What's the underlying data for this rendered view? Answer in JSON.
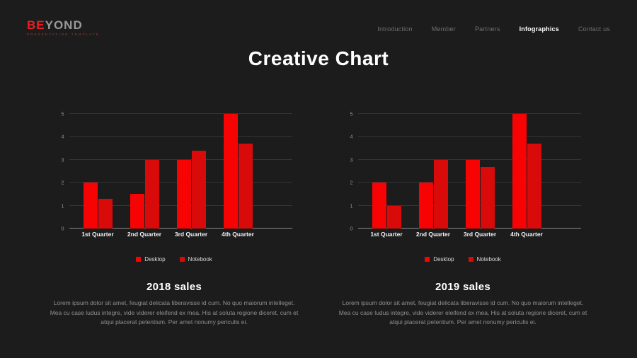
{
  "page": {
    "title": "Creative Chart"
  },
  "brand": {
    "logo_primary": "BE",
    "logo_secondary": "YOND",
    "tagline": "PRESENTATION TEMPLATE"
  },
  "nav": {
    "items": [
      {
        "label": "Introduction",
        "active": false
      },
      {
        "label": "Member",
        "active": false
      },
      {
        "label": "Partners",
        "active": false
      },
      {
        "label": "Infographics",
        "active": true
      },
      {
        "label": "Contact us",
        "active": false
      }
    ]
  },
  "colors": {
    "background": "#1c1c1c",
    "accent_red": "#ed1c24",
    "desktop_bar": "#f80304",
    "notebook_bar": "#d80a0a",
    "gridline": "#343434",
    "axis_baseline": "#8a8a8a"
  },
  "chart_data": [
    {
      "type": "bar",
      "title": "2018 sales",
      "categories": [
        "1st Quarter",
        "2nd Quarter",
        "3rd Quarter",
        "4th Quarter"
      ],
      "series": [
        {
          "name": "Desktop",
          "color": "#f80304",
          "values": [
            2.0,
            1.5,
            3.0,
            5.0
          ]
        },
        {
          "name": "Notebook",
          "color": "#d80a0a",
          "values": [
            1.3,
            3.0,
            3.4,
            3.7
          ]
        }
      ],
      "ylim": [
        0,
        5
      ],
      "yticks": [
        0,
        1,
        2,
        3,
        4,
        5
      ],
      "grid": true,
      "legend_position": "bottom"
    },
    {
      "type": "bar",
      "title": "2019 sales",
      "categories": [
        "1st Quarter",
        "2nd Quarter",
        "3rd Quarter",
        "4th Quarter"
      ],
      "series": [
        {
          "name": "Desktop",
          "color": "#f80304",
          "values": [
            2.0,
            2.0,
            3.0,
            5.0
          ]
        },
        {
          "name": "Notebook",
          "color": "#d80a0a",
          "values": [
            1.0,
            3.0,
            2.7,
            3.7
          ]
        }
      ],
      "ylim": [
        0,
        5
      ],
      "yticks": [
        0,
        1,
        2,
        3,
        4,
        5
      ],
      "grid": true,
      "legend_position": "bottom"
    }
  ],
  "sections": [
    {
      "heading": "2018 sales",
      "description": "Lorem ipsum dolor sit amet, feugiat delicata liberavisse id cum. No quo maiorum intelleget. Mea cu case ludus integre, vide viderer eleifend ex mea. His at soluta regione diceret, cum et atqui placerat petentium. Per amet nonumy periculis ei."
    },
    {
      "heading": "2019 sales",
      "description": "Lorem ipsum dolor sit amet, feugiat delicata liberavisse id cum. No quo maiorum intelleget. Mea cu case ludus integre, vide viderer eleifend ex mea. His at soluta regione diceret, cum et atqui placerat petentium. Per amet nonumy periculis ei."
    }
  ]
}
